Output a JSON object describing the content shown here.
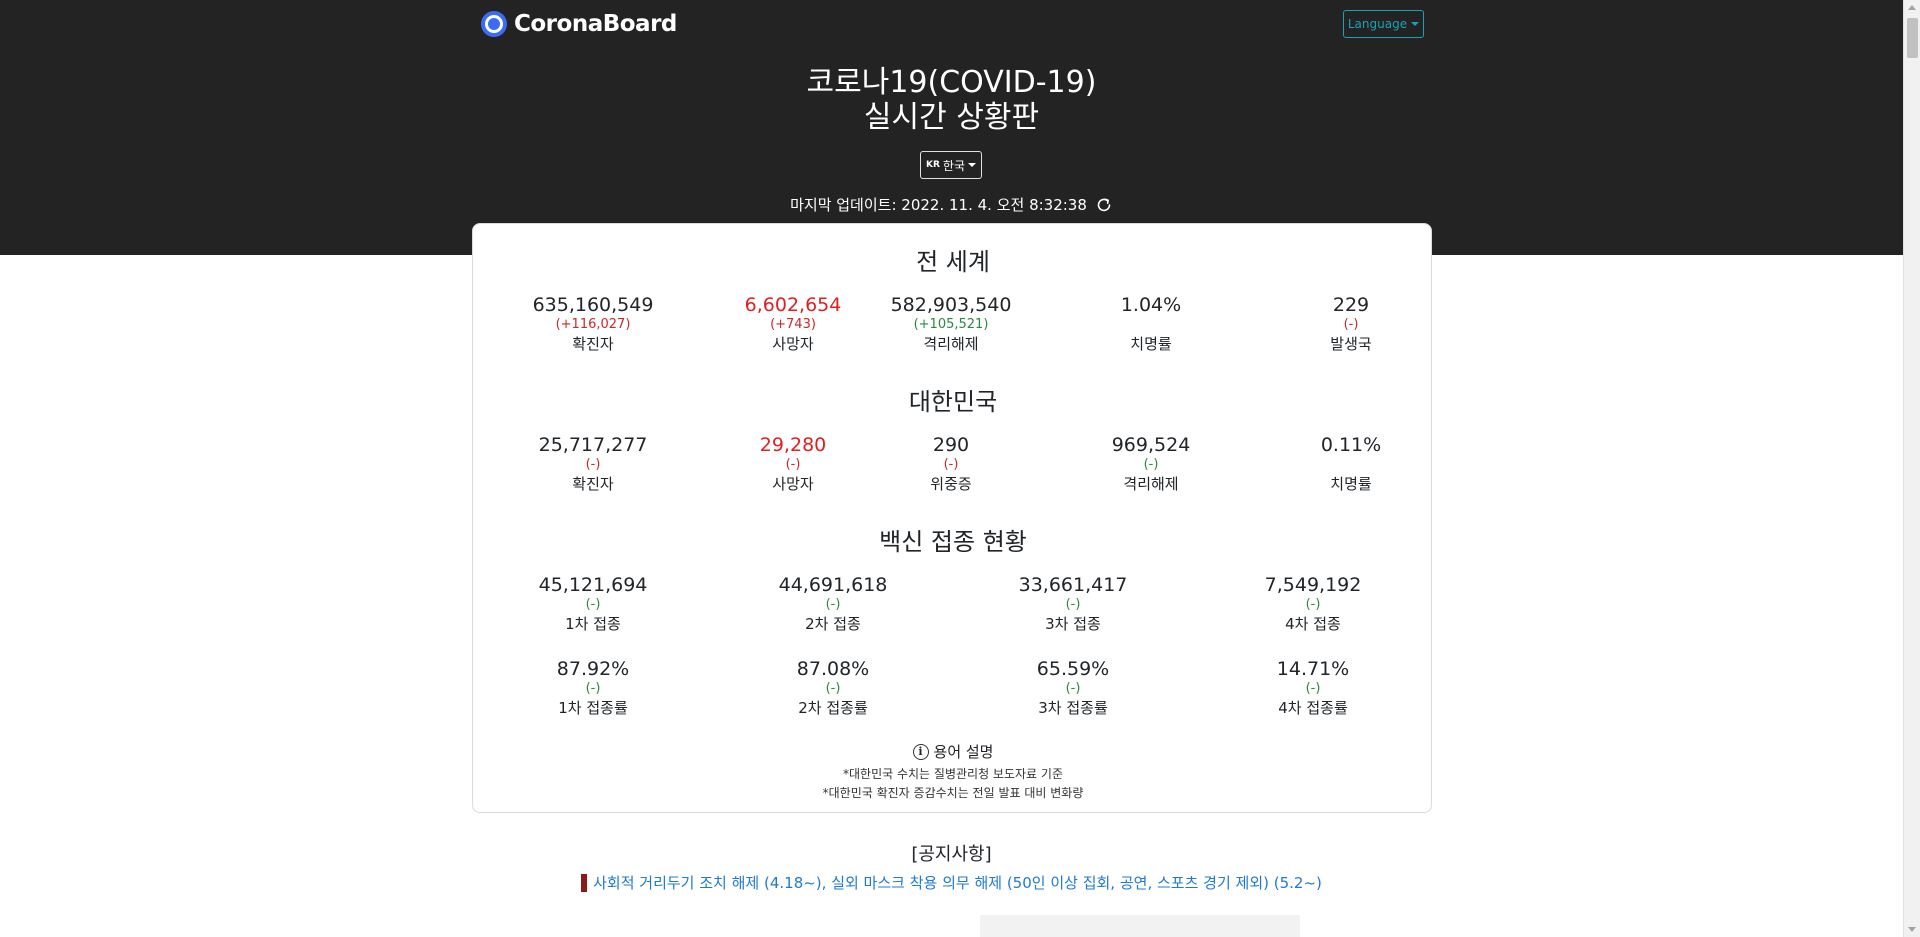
{
  "brand": {
    "name": "CoronaBoard",
    "accent": "#3b6cf6"
  },
  "language_button": {
    "label": "Language"
  },
  "title": {
    "line1": "코로나19(COVID-19)",
    "line2": "실시간 상황판"
  },
  "country_select": {
    "flag": "KR",
    "label": "한국"
  },
  "last_update": "마지막 업데이트: 2022. 11. 4. 오전 8:32:38",
  "world": {
    "title": "전 세계",
    "stats": [
      {
        "value": "635,160,549",
        "delta": "(+116,027)",
        "label": "확진자"
      },
      {
        "value": "6,602,654",
        "delta": "(+743)",
        "label": "사망자"
      },
      {
        "value": "582,903,540",
        "delta": "(+105,521)",
        "label": "격리해제"
      },
      {
        "value": "1.04%",
        "delta": "",
        "label": "치명률"
      },
      {
        "value": "229",
        "delta": "(-)",
        "label": "발생국"
      }
    ]
  },
  "korea": {
    "title": "대한민국",
    "stats": [
      {
        "value": "25,717,277",
        "delta": "(-)",
        "label": "확진자"
      },
      {
        "value": "29,280",
        "delta": "(-)",
        "label": "사망자"
      },
      {
        "value": "290",
        "delta": "(-)",
        "label": "위중증"
      },
      {
        "value": "969,524",
        "delta": "(-)",
        "label": "격리해제"
      },
      {
        "value": "0.11%",
        "delta": "",
        "label": "치명률"
      }
    ]
  },
  "vaccine": {
    "title": "백신 접종 현황",
    "counts": [
      {
        "value": "45,121,694",
        "delta": "(-)",
        "label": "1차 접종"
      },
      {
        "value": "44,691,618",
        "delta": "(-)",
        "label": "2차 접종"
      },
      {
        "value": "33,661,417",
        "delta": "(-)",
        "label": "3차 접종"
      },
      {
        "value": "7,549,192",
        "delta": "(-)",
        "label": "4차 접종"
      }
    ],
    "rates": [
      {
        "value": "87.92%",
        "delta": "(-)",
        "label": "1차 접종률"
      },
      {
        "value": "87.08%",
        "delta": "(-)",
        "label": "2차 접종률"
      },
      {
        "value": "65.59%",
        "delta": "(-)",
        "label": "3차 접종률"
      },
      {
        "value": "14.71%",
        "delta": "(-)",
        "label": "4차 접종률"
      }
    ]
  },
  "glossary": {
    "label": "용어 설명",
    "notes": [
      "*대한민국 수치는 질병관리청 보도자료 기준",
      "*대한민국 확진자 증감수치는 전일 발표 대비 변화량"
    ]
  },
  "notice": {
    "title": "[공지사항]",
    "link": "사회적 거리두기 조치 해제 (4.18~), 실외 마스크 착용 의무 해제 (50인 이상 집회, 공연, 스포츠 경기 제외) (5.2~)"
  },
  "colors": {
    "header_bg": "#232323",
    "death_red": "#e02020",
    "delta_red": "#c92a2a",
    "delta_green": "#2b8a3e",
    "link_blue": "#1f7ad1",
    "language_teal": "#17a2b8"
  }
}
